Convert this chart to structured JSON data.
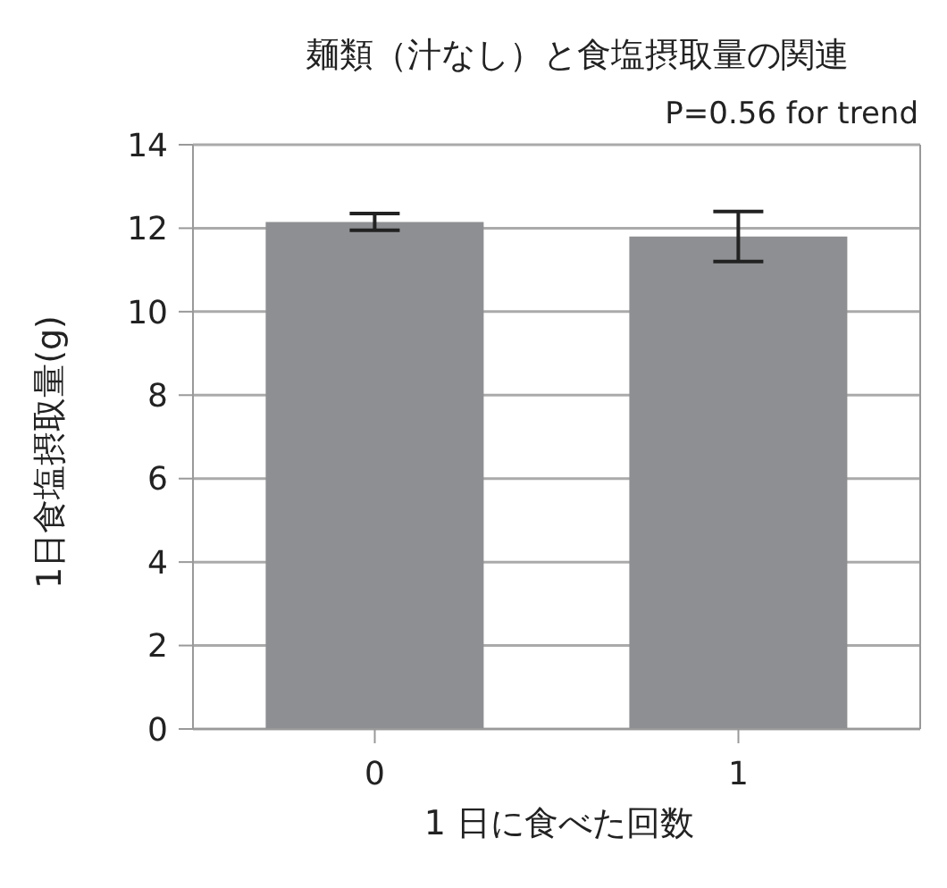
{
  "chart_data": {
    "type": "bar",
    "title": "麺類（汁なし）と食塩摂取量の関連",
    "xlabel": "1 日に食べた回数",
    "ylabel": "1日食塩摂取量(g)",
    "annotations": [
      "P=0.56 for trend"
    ],
    "categories": [
      "0",
      "1"
    ],
    "values": [
      12.15,
      11.8
    ],
    "errors": [
      0.2,
      0.6
    ],
    "color": "#8e8f92",
    "ylim": [
      0,
      14
    ],
    "yticks": [
      0,
      2,
      4,
      6,
      8,
      10,
      12,
      14
    ],
    "grid": "y"
  }
}
